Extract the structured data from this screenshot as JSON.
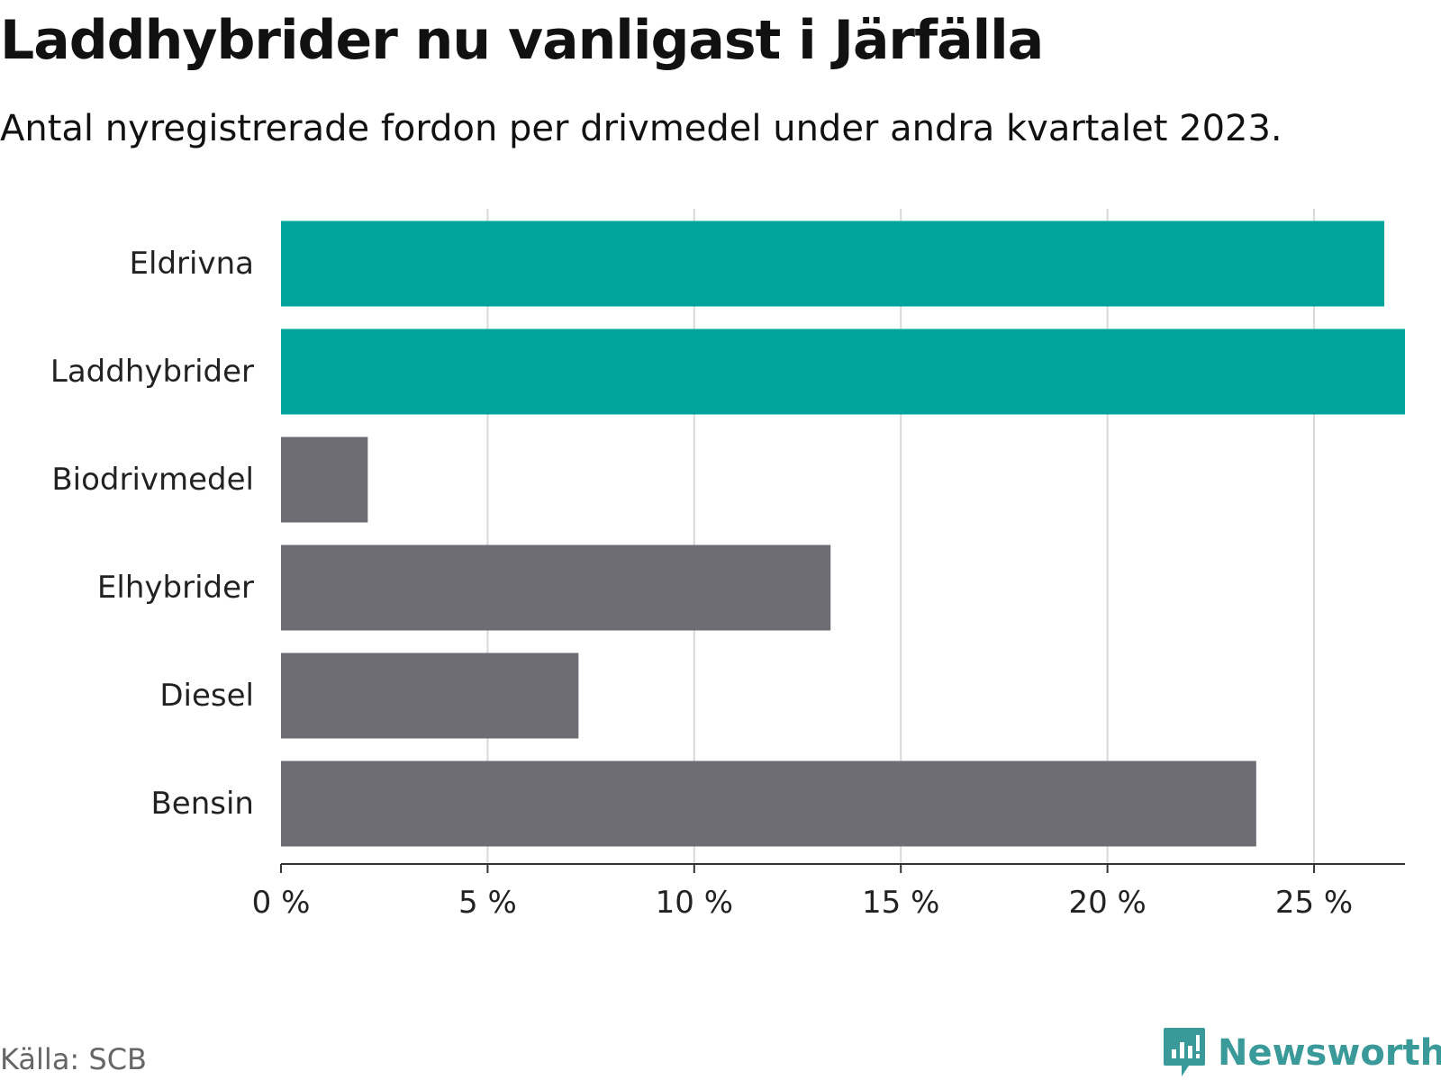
{
  "header": {
    "title": "Laddhybrider nu vanligast i Järfälla",
    "subtitle": "Antal nyregistrerade fordon per drivmedel under andra kvartalet 2023."
  },
  "footer": {
    "source": "Källa: SCB",
    "brand": "Newsworthy"
  },
  "colors": {
    "highlight": "#00a49a",
    "default": "#6e6d73",
    "grid": "#d9d9d9",
    "axis": "#333333",
    "brand": "#3a9a99"
  },
  "chart_data": {
    "type": "bar",
    "orientation": "horizontal",
    "title": "Laddhybrider nu vanligast i Järfälla",
    "subtitle": "Antal nyregistrerade fordon per drivmedel under andra kvartalet 2023.",
    "xlabel": "",
    "ylabel": "",
    "categories": [
      "Eldrivna",
      "Laddhybrider",
      "Biodrivmedel",
      "Elhybrider",
      "Diesel",
      "Bensin"
    ],
    "values": [
      26.7,
      27.2,
      2.1,
      13.3,
      7.2,
      23.6
    ],
    "highlighted": [
      true,
      true,
      false,
      false,
      false,
      false
    ],
    "unit": "%",
    "xlim": [
      0,
      27.2
    ],
    "xticks": [
      0,
      5,
      10,
      15,
      20,
      25
    ],
    "xtick_labels": [
      "0 %",
      "5 %",
      "10 %",
      "15 %",
      "20 %",
      "25 %"
    ],
    "grid": true
  }
}
